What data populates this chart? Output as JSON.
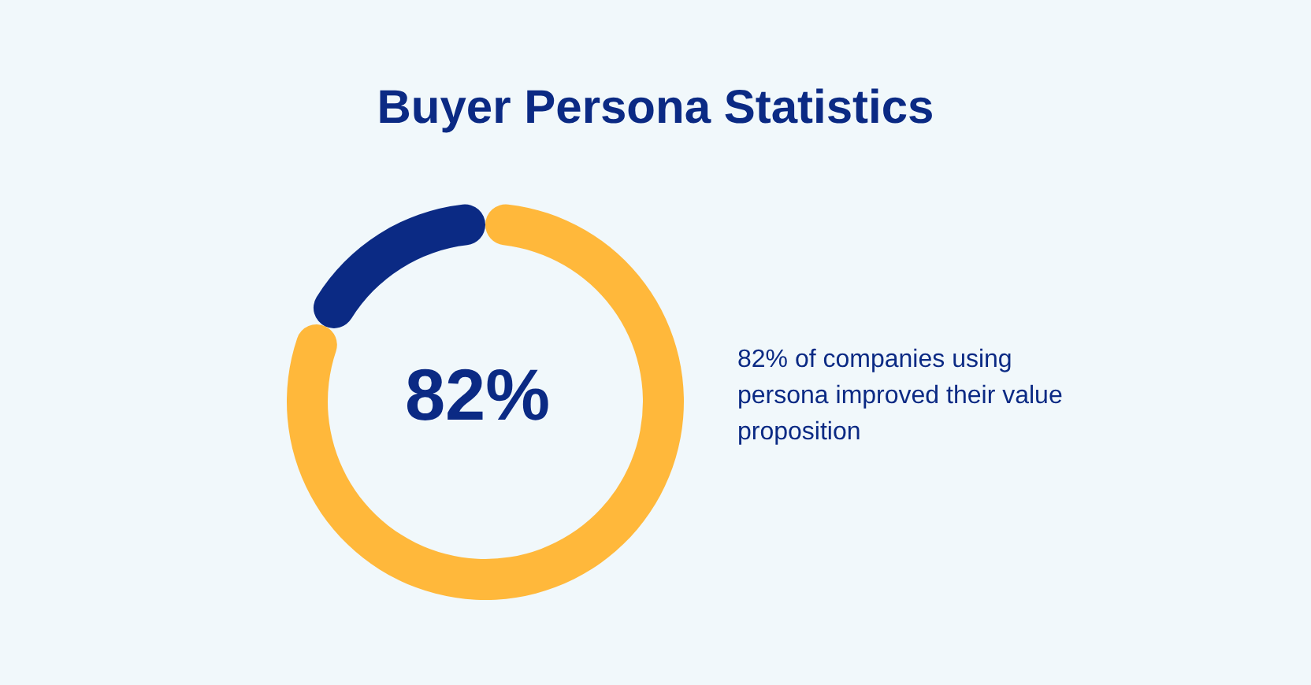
{
  "chart_data": {
    "type": "donut",
    "title": "Buyer Persona Statistics",
    "categories": [
      null,
      null
    ],
    "values": [
      82,
      18
    ],
    "colors": [
      "#ffb83b",
      "#0b2a84"
    ],
    "annotations": [
      "82%",
      "82% of companies using persona improved their value proposition"
    ]
  }
}
